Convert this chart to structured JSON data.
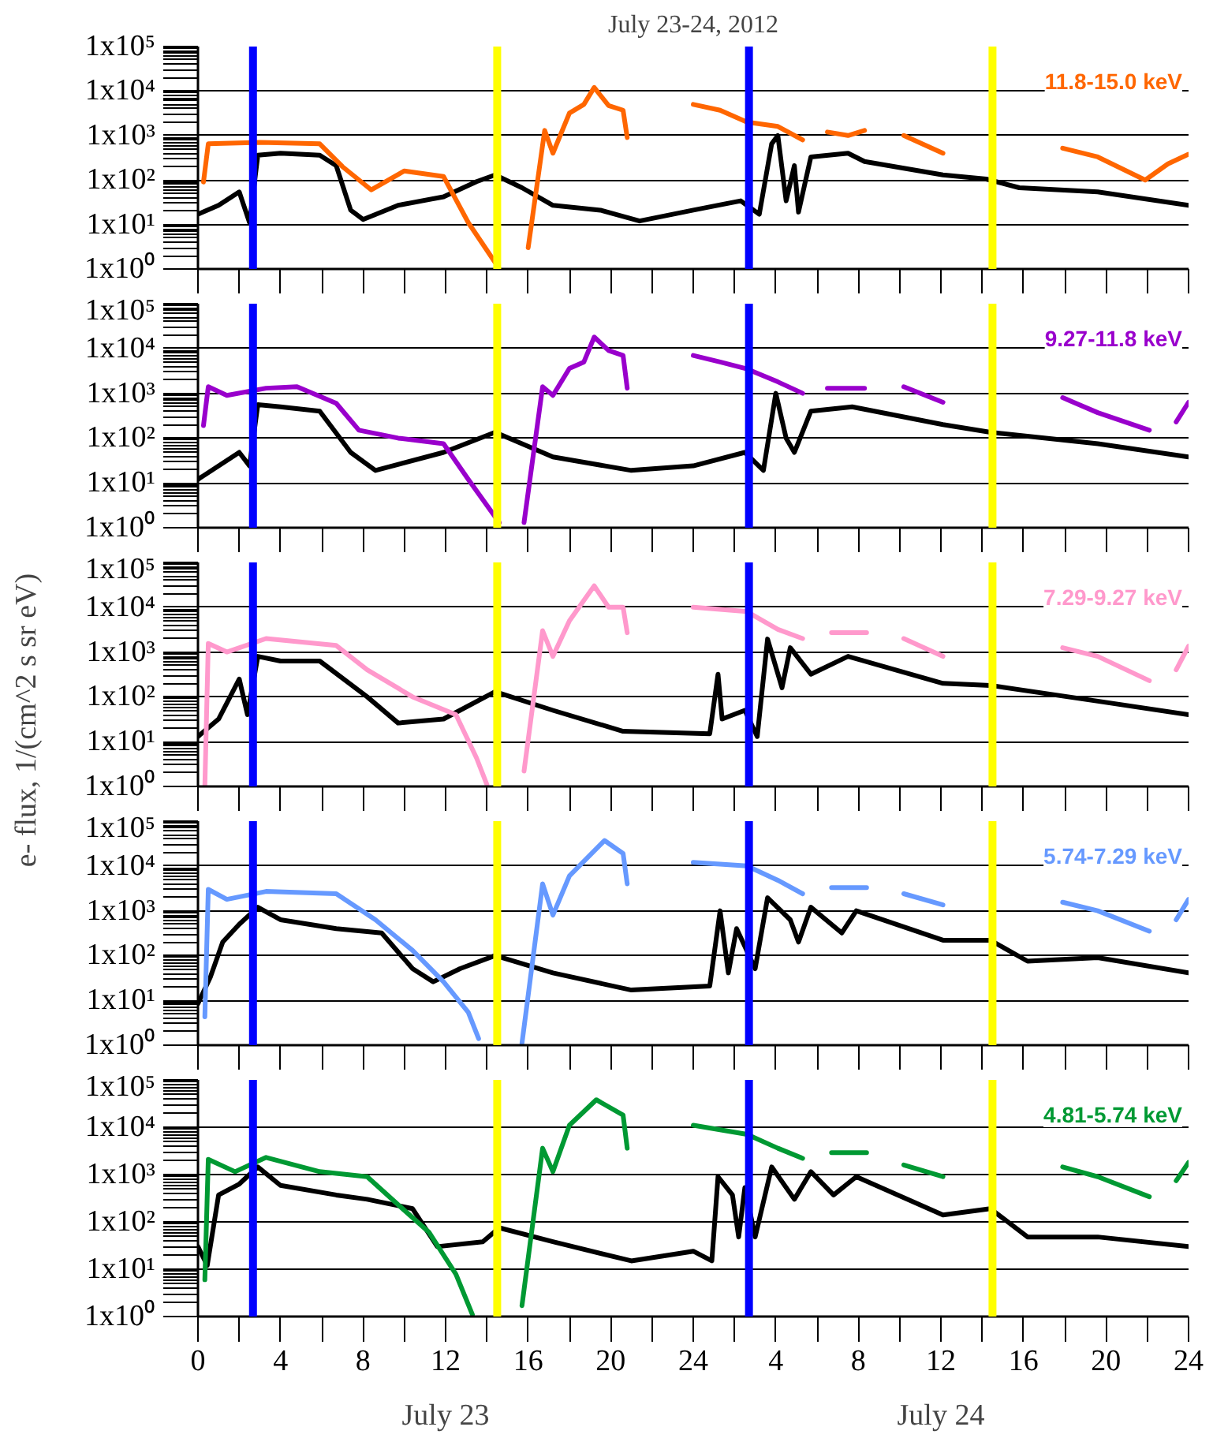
{
  "chart_data": [
    {
      "type": "line",
      "title": "July 23-24, 2012",
      "log": "y",
      "grid": "y",
      "tick_labels": "y",
      "xlim": [
        "2012-07-23T00:00",
        "2012-07-25T00:00"
      ],
      "ylim": [
        1,
        100000
      ],
      "xticks": [
        {
          "value": "2012-07-23T00:00",
          "label": null
        },
        {
          "value": "2012-07-23T02:00",
          "label": null
        },
        {
          "value": "2012-07-23T04:00",
          "label": null
        },
        {
          "value": "2012-07-23T06:00",
          "label": null
        },
        {
          "value": "2012-07-23T08:00",
          "label": null
        },
        {
          "value": "2012-07-23T10:00",
          "label": null
        },
        {
          "value": "2012-07-23T12:00",
          "label": null
        },
        {
          "value": "2012-07-23T14:00",
          "label": null
        },
        {
          "value": "2012-07-23T16:00",
          "label": null
        },
        {
          "value": "2012-07-23T18:00",
          "label": null
        },
        {
          "value": "2012-07-23T20:00",
          "label": null
        },
        {
          "value": "2012-07-23T22:00",
          "label": null
        },
        {
          "value": "2012-07-24T00:00",
          "label": null
        },
        {
          "value": "2012-07-24T02:00",
          "label": null
        },
        {
          "value": "2012-07-24T04:00",
          "label": null
        },
        {
          "value": "2012-07-24T06:00",
          "label": null
        },
        {
          "value": "2012-07-24T08:00",
          "label": null
        },
        {
          "value": "2012-07-24T10:00",
          "label": null
        },
        {
          "value": "2012-07-24T12:00",
          "label": null
        },
        {
          "value": "2012-07-24T14:00",
          "label": null
        },
        {
          "value": "2012-07-24T16:00",
          "label": null
        },
        {
          "value": "2012-07-24T18:00",
          "label": null
        },
        {
          "value": "2012-07-24T20:00",
          "label": null
        },
        {
          "value": "2012-07-24T22:00",
          "label": null
        },
        {
          "value": "2012-07-25T00:00",
          "label": null
        }
      ],
      "yticks": [
        {
          "value": 1,
          "label": "1x10⁰"
        },
        {
          "value": 10,
          "label": "1x10¹"
        },
        {
          "value": 100,
          "label": "1x10²"
        },
        {
          "value": 1000,
          "label": "1x10³"
        },
        {
          "value": 10000,
          "label": "1x10⁴"
        },
        {
          "value": 100000,
          "label": "1x10⁵"
        }
      ],
      "ref_lines": [
        {
          "axis": "x",
          "value": "2012-07-23T02:40",
          "color": "#0000ff"
        },
        {
          "axis": "x",
          "value": "2012-07-23T14:30",
          "color": "#ffff00"
        },
        {
          "axis": "x",
          "value": "2012-07-24T02:42",
          "color": "#0000ff"
        },
        {
          "axis": "x",
          "value": "2012-07-24T14:30",
          "color": "#ffff00"
        }
      ],
      "series": [
        {
          "color": "#000000",
          "x": [
            "2012-07-23T00:00",
            "2012-07-23T01:00",
            "2012-07-23T02:00",
            "2012-07-23T02:30",
            "2012-07-23T02:54",
            "2012-07-23T04:00",
            "2012-07-23T05:54",
            "2012-07-23T06:42",
            "2012-07-23T07:24",
            "2012-07-23T08:00",
            "2012-07-23T09:42",
            "2012-07-23T11:54",
            "2012-07-23T13:30",
            "2012-07-23T14:24",
            "2012-07-23T15:42",
            "2012-07-23T17:12",
            "2012-07-23T19:30",
            "2012-07-23T21:24",
            "2012-07-24T00:00",
            "2012-07-24T02:18",
            "2012-07-24T03:12",
            "2012-07-24T03:48",
            "2012-07-24T04:06",
            "2012-07-24T04:30",
            "2012-07-24T04:54",
            "2012-07-24T05:06",
            "2012-07-24T05:42",
            "2012-07-24T07:30",
            "2012-07-24T08:18",
            "2012-07-24T12:06",
            "2012-07-24T14:12",
            "2012-07-24T15:48",
            "2012-07-24T19:36",
            "2012-07-25T00:00"
          ],
          "values": [
            17,
            27,
            54,
            11,
            360,
            400,
            360,
            210,
            21,
            13,
            27,
            42,
            92,
            130,
            67,
            27,
            21,
            12,
            21,
            34,
            17,
            650,
            1000,
            34,
            210,
            19,
            330,
            400,
            260,
            130,
            105,
            67,
            54,
            27
          ]
        },
        {
          "name": "11.8-15.0 keV",
          "color": "#ff6600",
          "x": [
            "2012-07-23T00:16",
            "2012-07-23T00:30",
            "2012-07-23T03:00",
            "2012-07-23T05:54",
            "2012-07-23T07:00",
            "2012-07-23T08:24",
            "2012-07-23T10:00",
            "2012-07-23T11:54",
            "2012-07-23T13:06",
            "2012-07-23T14:24",
            "2012-07-23T15:12",
            "2012-07-23T16:00",
            "2012-07-23T16:48",
            "2012-07-23T17:12",
            "2012-07-23T18:00",
            "2012-07-23T18:42",
            "2012-07-23T19:12",
            "2012-07-23T19:54",
            "2012-07-23T20:36",
            "2012-07-23T20:48",
            "2012-07-23T22:24",
            "2012-07-24T00:00",
            "2012-07-24T01:18",
            "2012-07-24T02:36",
            "2012-07-24T04:06",
            "2012-07-24T05:18",
            "2012-07-24T05:48",
            "2012-07-24T06:30",
            "2012-07-24T07:30",
            "2012-07-24T08:18",
            "2012-07-24T09:18",
            "2012-07-24T10:12",
            "2012-07-24T12:06",
            "2012-07-24T15:00",
            "2012-07-24T17:54",
            "2012-07-24T19:36",
            "2012-07-24T21:54",
            "2012-07-24T23:00",
            "2012-07-25T00:00"
          ],
          "values": [
            90,
            650,
            700,
            650,
            200,
            60,
            160,
            120,
            11,
            1.4,
            null,
            3,
            1300,
            400,
            3200,
            5000,
            12000,
            4700,
            3700,
            900,
            null,
            5000,
            3700,
            2000,
            1600,
            800,
            null,
            1200,
            1000,
            1300,
            null,
            1000,
            400,
            null,
            520,
            330,
            100,
            230,
            380
          ]
        }
      ]
    },
    {
      "type": "line",
      "log": "y",
      "grid": "y",
      "tick_labels": "y",
      "xlim": [
        "2012-07-23T00:00",
        "2012-07-25T00:00"
      ],
      "ylim": [
        1,
        100000
      ],
      "xticks": [
        {
          "value": "2012-07-23T00:00",
          "label": null
        },
        {
          "value": "2012-07-23T02:00",
          "label": null
        },
        {
          "value": "2012-07-23T04:00",
          "label": null
        },
        {
          "value": "2012-07-23T06:00",
          "label": null
        },
        {
          "value": "2012-07-23T08:00",
          "label": null
        },
        {
          "value": "2012-07-23T10:00",
          "label": null
        },
        {
          "value": "2012-07-23T12:00",
          "label": null
        },
        {
          "value": "2012-07-23T14:00",
          "label": null
        },
        {
          "value": "2012-07-23T16:00",
          "label": null
        },
        {
          "value": "2012-07-23T18:00",
          "label": null
        },
        {
          "value": "2012-07-23T20:00",
          "label": null
        },
        {
          "value": "2012-07-23T22:00",
          "label": null
        },
        {
          "value": "2012-07-24T00:00",
          "label": null
        },
        {
          "value": "2012-07-24T02:00",
          "label": null
        },
        {
          "value": "2012-07-24T04:00",
          "label": null
        },
        {
          "value": "2012-07-24T06:00",
          "label": null
        },
        {
          "value": "2012-07-24T08:00",
          "label": null
        },
        {
          "value": "2012-07-24T10:00",
          "label": null
        },
        {
          "value": "2012-07-24T12:00",
          "label": null
        },
        {
          "value": "2012-07-24T14:00",
          "label": null
        },
        {
          "value": "2012-07-24T16:00",
          "label": null
        },
        {
          "value": "2012-07-24T18:00",
          "label": null
        },
        {
          "value": "2012-07-24T20:00",
          "label": null
        },
        {
          "value": "2012-07-24T22:00",
          "label": null
        },
        {
          "value": "2012-07-25T00:00",
          "label": null
        }
      ],
      "yticks": [
        {
          "value": 1,
          "label": "1x10⁰"
        },
        {
          "value": 10,
          "label": "1x10¹"
        },
        {
          "value": 100,
          "label": "1x10²"
        },
        {
          "value": 1000,
          "label": "1x10³"
        },
        {
          "value": 10000,
          "label": "1x10⁴"
        },
        {
          "value": 100000,
          "label": "1x10⁵"
        }
      ],
      "ref_lines": [
        {
          "axis": "x",
          "value": "2012-07-23T02:40",
          "color": "#0000ff"
        },
        {
          "axis": "x",
          "value": "2012-07-23T14:30",
          "color": "#ffff00"
        },
        {
          "axis": "x",
          "value": "2012-07-24T02:42",
          "color": "#0000ff"
        },
        {
          "axis": "x",
          "value": "2012-07-24T14:30",
          "color": "#ffff00"
        }
      ],
      "series": [
        {
          "color": "#000000",
          "x": [
            "2012-07-23T00:00",
            "2012-07-23T02:00",
            "2012-07-23T02:30",
            "2012-07-23T02:54",
            "2012-07-23T04:00",
            "2012-07-23T05:54",
            "2012-07-23T07:24",
            "2012-07-23T08:36",
            "2012-07-23T11:54",
            "2012-07-23T14:24",
            "2012-07-23T17:12",
            "2012-07-23T21:00",
            "2012-07-24T00:00",
            "2012-07-24T02:30",
            "2012-07-24T03:24",
            "2012-07-24T04:00",
            "2012-07-24T04:30",
            "2012-07-24T04:54",
            "2012-07-24T05:42",
            "2012-07-24T07:42",
            "2012-07-24T12:06",
            "2012-07-24T14:24",
            "2012-07-24T19:36",
            "2012-07-25T00:00"
          ],
          "values": [
            12,
            48,
            24,
            560,
            500,
            400,
            48,
            19,
            48,
            135,
            38,
            19,
            24,
            48,
            19,
            1000,
            100,
            48,
            400,
            500,
            200,
            135,
            75,
            38
          ]
        },
        {
          "name": "9.27-11.8 keV",
          "color": "#9900cc",
          "x": [
            "2012-07-23T00:16",
            "2012-07-23T00:30",
            "2012-07-23T01:24",
            "2012-07-23T03:18",
            "2012-07-23T04:48",
            "2012-07-23T06:42",
            "2012-07-23T07:48",
            "2012-07-23T09:42",
            "2012-07-23T11:54",
            "2012-07-23T13:06",
            "2012-07-23T14:36",
            "2012-07-23T15:12",
            "2012-07-23T15:48",
            "2012-07-23T16:42",
            "2012-07-23T17:12",
            "2012-07-23T18:00",
            "2012-07-23T18:42",
            "2012-07-23T19:12",
            "2012-07-23T19:54",
            "2012-07-23T20:36",
            "2012-07-23T20:48",
            "2012-07-23T22:24",
            "2012-07-24T00:00",
            "2012-07-24T01:18",
            "2012-07-24T02:36",
            "2012-07-24T04:06",
            "2012-07-24T05:18",
            "2012-07-24T05:48",
            "2012-07-24T06:30",
            "2012-07-24T08:18",
            "2012-07-24T09:18",
            "2012-07-24T10:12",
            "2012-07-24T12:06",
            "2012-07-24T15:00",
            "2012-07-24T17:54",
            "2012-07-24T19:36",
            "2012-07-24T22:06",
            "2012-07-24T22:48",
            "2012-07-24T23:24",
            "2012-07-25T00:00"
          ],
          "values": [
            190,
            1400,
            900,
            1300,
            1400,
            600,
            150,
            100,
            75,
            12,
            1.3,
            null,
            1.3,
            1400,
            900,
            3600,
            5000,
            18000,
            9000,
            7000,
            1300,
            null,
            7000,
            5000,
            3500,
            1800,
            1000,
            null,
            1300,
            1300,
            null,
            1400,
            630,
            null,
            800,
            370,
            150,
            null,
            230,
            630
          ]
        }
      ]
    },
    {
      "type": "line",
      "log": "y",
      "grid": "y",
      "tick_labels": "y",
      "xlim": [
        "2012-07-23T00:00",
        "2012-07-25T00:00"
      ],
      "ylim": [
        1,
        100000
      ],
      "ylabel": "e- flux, 1/(cm^2 s sr eV)",
      "xticks": [
        {
          "value": "2012-07-23T00:00",
          "label": null
        },
        {
          "value": "2012-07-23T02:00",
          "label": null
        },
        {
          "value": "2012-07-23T04:00",
          "label": null
        },
        {
          "value": "2012-07-23T06:00",
          "label": null
        },
        {
          "value": "2012-07-23T08:00",
          "label": null
        },
        {
          "value": "2012-07-23T10:00",
          "label": null
        },
        {
          "value": "2012-07-23T12:00",
          "label": null
        },
        {
          "value": "2012-07-23T14:00",
          "label": null
        },
        {
          "value": "2012-07-23T16:00",
          "label": null
        },
        {
          "value": "2012-07-23T18:00",
          "label": null
        },
        {
          "value": "2012-07-23T20:00",
          "label": null
        },
        {
          "value": "2012-07-23T22:00",
          "label": null
        },
        {
          "value": "2012-07-24T00:00",
          "label": null
        },
        {
          "value": "2012-07-24T02:00",
          "label": null
        },
        {
          "value": "2012-07-24T04:00",
          "label": null
        },
        {
          "value": "2012-07-24T06:00",
          "label": null
        },
        {
          "value": "2012-07-24T08:00",
          "label": null
        },
        {
          "value": "2012-07-24T10:00",
          "label": null
        },
        {
          "value": "2012-07-24T12:00",
          "label": null
        },
        {
          "value": "2012-07-24T14:00",
          "label": null
        },
        {
          "value": "2012-07-24T16:00",
          "label": null
        },
        {
          "value": "2012-07-24T18:00",
          "label": null
        },
        {
          "value": "2012-07-24T20:00",
          "label": null
        },
        {
          "value": "2012-07-24T22:00",
          "label": null
        },
        {
          "value": "2012-07-25T00:00",
          "label": null
        }
      ],
      "yticks": [
        {
          "value": 1,
          "label": "1x10⁰"
        },
        {
          "value": 10,
          "label": "1x10¹"
        },
        {
          "value": 100,
          "label": "1x10²"
        },
        {
          "value": 1000,
          "label": "1x10³"
        },
        {
          "value": 10000,
          "label": "1x10⁴"
        },
        {
          "value": 100000,
          "label": "1x10⁵"
        }
      ],
      "ref_lines": [
        {
          "axis": "x",
          "value": "2012-07-23T02:40",
          "color": "#0000ff"
        },
        {
          "axis": "x",
          "value": "2012-07-23T14:30",
          "color": "#ffff00"
        },
        {
          "axis": "x",
          "value": "2012-07-24T02:42",
          "color": "#0000ff"
        },
        {
          "axis": "x",
          "value": "2012-07-24T14:30",
          "color": "#ffff00"
        }
      ],
      "series": [
        {
          "color": "#000000",
          "x": [
            "2012-07-23T00:00",
            "2012-07-23T01:00",
            "2012-07-23T02:00",
            "2012-07-23T02:24",
            "2012-07-23T02:54",
            "2012-07-23T04:00",
            "2012-07-23T05:54",
            "2012-07-23T08:12",
            "2012-07-23T09:42",
            "2012-07-23T11:54",
            "2012-07-23T14:24",
            "2012-07-23T17:12",
            "2012-07-23T20:36",
            "2012-07-24T00:48",
            "2012-07-24T01:12",
            "2012-07-24T01:24",
            "2012-07-24T02:30",
            "2012-07-24T03:06",
            "2012-07-24T03:36",
            "2012-07-24T04:18",
            "2012-07-24T04:42",
            "2012-07-24T05:42",
            "2012-07-24T07:30",
            "2012-07-24T12:06",
            "2012-07-24T14:24",
            "2012-07-24T19:36",
            "2012-07-25T00:00"
          ],
          "values": [
            13,
            32,
            250,
            40,
            800,
            630,
            630,
            100,
            26,
            32,
            130,
            50,
            17,
            15,
            320,
            32,
            50,
            13,
            1950,
            160,
            1250,
            320,
            800,
            200,
            180,
            80,
            40
          ]
        },
        {
          "name": "7.29-9.27 keV",
          "color": "#ff99cc",
          "x": [
            "2012-07-23T00:20",
            "2012-07-23T00:30",
            "2012-07-23T01:24",
            "2012-07-23T03:18",
            "2012-07-23T06:42",
            "2012-07-23T08:12",
            "2012-07-23T10:24",
            "2012-07-23T12:30",
            "2012-07-23T13:30",
            "2012-07-23T14:00",
            "2012-07-23T14:54",
            "2012-07-23T15:48",
            "2012-07-23T16:42",
            "2012-07-23T17:12",
            "2012-07-23T18:00",
            "2012-07-23T19:12",
            "2012-07-23T19:54",
            "2012-07-23T20:36",
            "2012-07-23T20:48",
            "2012-07-23T22:24",
            "2012-07-24T00:00",
            "2012-07-24T02:36",
            "2012-07-24T04:06",
            "2012-07-24T05:18",
            "2012-07-24T05:48",
            "2012-07-24T06:42",
            "2012-07-24T08:24",
            "2012-07-24T09:18",
            "2012-07-24T10:12",
            "2012-07-24T12:06",
            "2012-07-24T15:00",
            "2012-07-24T17:54",
            "2012-07-24T19:36",
            "2012-07-24T22:06",
            "2012-07-24T22:48",
            "2012-07-24T23:24",
            "2012-07-25T00:00"
          ],
          "values": [
            1.0,
            1550,
            1000,
            2000,
            1400,
            400,
            100,
            40,
            4.3,
            1.1,
            null,
            2.2,
            3000,
            800,
            5000,
            30000,
            10000,
            10000,
            2700,
            null,
            10000,
            8000,
            3200,
            2000,
            null,
            2700,
            2700,
            null,
            2000,
            800,
            null,
            1250,
            800,
            230,
            null,
            400,
            1350
          ]
        }
      ]
    },
    {
      "type": "line",
      "log": "y",
      "grid": "y",
      "tick_labels": "y",
      "xlim": [
        "2012-07-23T00:00",
        "2012-07-25T00:00"
      ],
      "ylim": [
        1,
        100000
      ],
      "xticks": [
        {
          "value": "2012-07-23T00:00",
          "label": null
        },
        {
          "value": "2012-07-23T02:00",
          "label": null
        },
        {
          "value": "2012-07-23T04:00",
          "label": null
        },
        {
          "value": "2012-07-23T06:00",
          "label": null
        },
        {
          "value": "2012-07-23T08:00",
          "label": null
        },
        {
          "value": "2012-07-23T10:00",
          "label": null
        },
        {
          "value": "2012-07-23T12:00",
          "label": null
        },
        {
          "value": "2012-07-23T14:00",
          "label": null
        },
        {
          "value": "2012-07-23T16:00",
          "label": null
        },
        {
          "value": "2012-07-23T18:00",
          "label": null
        },
        {
          "value": "2012-07-23T20:00",
          "label": null
        },
        {
          "value": "2012-07-23T22:00",
          "label": null
        },
        {
          "value": "2012-07-24T00:00",
          "label": null
        },
        {
          "value": "2012-07-24T02:00",
          "label": null
        },
        {
          "value": "2012-07-24T04:00",
          "label": null
        },
        {
          "value": "2012-07-24T06:00",
          "label": null
        },
        {
          "value": "2012-07-24T08:00",
          "label": null
        },
        {
          "value": "2012-07-24T10:00",
          "label": null
        },
        {
          "value": "2012-07-24T12:00",
          "label": null
        },
        {
          "value": "2012-07-24T14:00",
          "label": null
        },
        {
          "value": "2012-07-24T16:00",
          "label": null
        },
        {
          "value": "2012-07-24T18:00",
          "label": null
        },
        {
          "value": "2012-07-24T20:00",
          "label": null
        },
        {
          "value": "2012-07-24T22:00",
          "label": null
        },
        {
          "value": "2012-07-25T00:00",
          "label": null
        }
      ],
      "yticks": [
        {
          "value": 1,
          "label": "1x10⁰"
        },
        {
          "value": 10,
          "label": "1x10¹"
        },
        {
          "value": 100,
          "label": "1x10²"
        },
        {
          "value": 1000,
          "label": "1x10³"
        },
        {
          "value": 10000,
          "label": "1x10⁴"
        },
        {
          "value": 100000,
          "label": "1x10⁵"
        }
      ],
      "ref_lines": [
        {
          "axis": "x",
          "value": "2012-07-23T02:40",
          "color": "#0000ff"
        },
        {
          "axis": "x",
          "value": "2012-07-23T14:30",
          "color": "#ffff00"
        },
        {
          "axis": "x",
          "value": "2012-07-24T02:42",
          "color": "#0000ff"
        },
        {
          "axis": "x",
          "value": "2012-07-24T14:30",
          "color": "#ffff00"
        }
      ],
      "series": [
        {
          "color": "#000000",
          "x": [
            "2012-07-23T00:00",
            "2012-07-23T00:36",
            "2012-07-23T01:12",
            "2012-07-23T02:00",
            "2012-07-23T02:54",
            "2012-07-23T04:00",
            "2012-07-23T06:42",
            "2012-07-23T08:54",
            "2012-07-23T10:24",
            "2012-07-23T11:24",
            "2012-07-23T12:42",
            "2012-07-23T14:24",
            "2012-07-23T17:12",
            "2012-07-23T21:00",
            "2012-07-24T00:48",
            "2012-07-24T01:18",
            "2012-07-24T01:42",
            "2012-07-24T02:06",
            "2012-07-24T03:00",
            "2012-07-24T03:36",
            "2012-07-24T04:42",
            "2012-07-24T05:06",
            "2012-07-24T05:42",
            "2012-07-24T07:12",
            "2012-07-24T07:54",
            "2012-07-24T12:06",
            "2012-07-24T14:24",
            "2012-07-24T16:12",
            "2012-07-24T19:36",
            "2012-07-25T00:00"
          ],
          "values": [
            8.5,
            33,
            200,
            500,
            1200,
            630,
            400,
            320,
            51,
            26,
            51,
            100,
            41,
            17,
            21,
            1000,
            41,
            400,
            51,
            1950,
            630,
            200,
            1200,
            320,
            1000,
            220,
            220,
            75,
            90,
            41
          ]
        },
        {
          "name": "5.74-7.29 keV",
          "color": "#6699ff",
          "x": [
            "2012-07-23T00:20",
            "2012-07-23T00:30",
            "2012-07-23T01:24",
            "2012-07-23T03:18",
            "2012-07-23T06:42",
            "2012-07-23T08:36",
            "2012-07-23T10:24",
            "2012-07-23T11:54",
            "2012-07-23T13:06",
            "2012-07-23T13:36",
            "2012-07-23T14:36",
            "2012-07-23T15:42",
            "2012-07-23T16:42",
            "2012-07-23T17:12",
            "2012-07-23T18:00",
            "2012-07-23T19:42",
            "2012-07-23T20:36",
            "2012-07-23T20:48",
            "2012-07-23T22:24",
            "2012-07-24T00:00",
            "2012-07-24T02:36",
            "2012-07-24T04:06",
            "2012-07-24T05:18",
            "2012-07-24T05:48",
            "2012-07-24T06:42",
            "2012-07-24T08:24",
            "2012-07-24T09:18",
            "2012-07-24T10:12",
            "2012-07-24T12:06",
            "2012-07-24T15:00",
            "2012-07-24T17:54",
            "2012-07-24T19:36",
            "2012-07-24T22:06",
            "2012-07-24T22:48",
            "2012-07-24T23:24",
            "2012-07-25T00:00"
          ],
          "values": [
            4.3,
            3000,
            1800,
            2700,
            2400,
            630,
            130,
            26,
            5.4,
            1.4,
            null,
            1.1,
            4000,
            800,
            6000,
            37000,
            19000,
            4000,
            null,
            12000,
            10000,
            4800,
            2400,
            null,
            3300,
            3300,
            null,
            2400,
            1350,
            null,
            1550,
            1000,
            350,
            null,
            630,
            1800
          ]
        }
      ]
    },
    {
      "type": "line",
      "log": "y",
      "grid": "y",
      "xlim": [
        "2012-07-23T00:00",
        "2012-07-25T00:00"
      ],
      "ylim": [
        1,
        100000
      ],
      "annotations": [
        "July 23",
        "July 24"
      ],
      "xticks": [
        {
          "value": "2012-07-23T00:00",
          "label": "0"
        },
        {
          "value": "2012-07-23T02:00",
          "label": null
        },
        {
          "value": "2012-07-23T04:00",
          "label": "4"
        },
        {
          "value": "2012-07-23T06:00",
          "label": null
        },
        {
          "value": "2012-07-23T08:00",
          "label": "8"
        },
        {
          "value": "2012-07-23T10:00",
          "label": null
        },
        {
          "value": "2012-07-23T12:00",
          "label": "12"
        },
        {
          "value": "2012-07-23T14:00",
          "label": null
        },
        {
          "value": "2012-07-23T16:00",
          "label": "16"
        },
        {
          "value": "2012-07-23T18:00",
          "label": null
        },
        {
          "value": "2012-07-23T20:00",
          "label": "20"
        },
        {
          "value": "2012-07-23T22:00",
          "label": null
        },
        {
          "value": "2012-07-24T00:00",
          "label": "24"
        },
        {
          "value": "2012-07-24T02:00",
          "label": null
        },
        {
          "value": "2012-07-24T04:00",
          "label": "4"
        },
        {
          "value": "2012-07-24T06:00",
          "label": null
        },
        {
          "value": "2012-07-24T08:00",
          "label": "8"
        },
        {
          "value": "2012-07-24T10:00",
          "label": null
        },
        {
          "value": "2012-07-24T12:00",
          "label": "12"
        },
        {
          "value": "2012-07-24T14:00",
          "label": null
        },
        {
          "value": "2012-07-24T16:00",
          "label": "16"
        },
        {
          "value": "2012-07-24T18:00",
          "label": null
        },
        {
          "value": "2012-07-24T20:00",
          "label": "20"
        },
        {
          "value": "2012-07-24T22:00",
          "label": null
        },
        {
          "value": "2012-07-25T00:00",
          "label": "24"
        }
      ],
      "yticks": [
        {
          "value": 1,
          "label": "1x10⁰"
        },
        {
          "value": 10,
          "label": "1x10¹"
        },
        {
          "value": 100,
          "label": "1x10²"
        },
        {
          "value": 1000,
          "label": "1x10³"
        },
        {
          "value": 10000,
          "label": "1x10⁴"
        },
        {
          "value": 100000,
          "label": "1x10⁵"
        }
      ],
      "ref_lines": [
        {
          "axis": "x",
          "value": "2012-07-23T02:40",
          "color": "#0000ff"
        },
        {
          "axis": "x",
          "value": "2012-07-23T14:30",
          "color": "#ffff00"
        },
        {
          "axis": "x",
          "value": "2012-07-24T02:42",
          "color": "#0000ff"
        },
        {
          "axis": "x",
          "value": "2012-07-24T14:30",
          "color": "#ffff00"
        }
      ],
      "series": [
        {
          "color": "#000000",
          "x": [
            "2012-07-23T00:00",
            "2012-07-23T00:27",
            "2012-07-23T01:00",
            "2012-07-23T02:00",
            "2012-07-23T02:54",
            "2012-07-23T04:00",
            "2012-07-23T06:42",
            "2012-07-23T08:12",
            "2012-07-23T10:24",
            "2012-07-23T11:36",
            "2012-07-23T13:48",
            "2012-07-23T14:36",
            "2012-07-23T17:12",
            "2012-07-23T21:00",
            "2012-07-24T00:00",
            "2012-07-24T00:54",
            "2012-07-24T01:12",
            "2012-07-24T01:54",
            "2012-07-24T02:12",
            "2012-07-24T02:30",
            "2012-07-24T03:00",
            "2012-07-24T03:48",
            "2012-07-24T04:54",
            "2012-07-24T05:42",
            "2012-07-24T06:48",
            "2012-07-24T07:54",
            "2012-07-24T12:06",
            "2012-07-24T14:24",
            "2012-07-24T16:12",
            "2012-07-24T19:36",
            "2012-07-25T00:00"
          ],
          "values": [
            30,
            12,
            370,
            630,
            1450,
            590,
            370,
            300,
            190,
            30,
            38,
            75,
            38,
            15,
            24,
            15,
            900,
            370,
            48,
            530,
            48,
            1450,
            300,
            1150,
            370,
            900,
            140,
            190,
            48,
            48,
            30
          ]
        },
        {
          "name": "4.81-5.74 keV",
          "color": "#009933",
          "x": [
            "2012-07-23T00:20",
            "2012-07-23T00:30",
            "2012-07-23T01:48",
            "2012-07-23T03:18",
            "2012-07-23T05:54",
            "2012-07-23T08:12",
            "2012-07-23T09:42",
            "2012-07-23T11:12",
            "2012-07-23T12:30",
            "2012-07-23T13:18",
            "2012-07-23T14:30",
            "2012-07-23T15:42",
            "2012-07-23T16:42",
            "2012-07-23T17:12",
            "2012-07-23T18:00",
            "2012-07-23T19:18",
            "2012-07-23T20:36",
            "2012-07-23T20:48",
            "2012-07-23T22:24",
            "2012-07-24T00:00",
            "2012-07-24T02:36",
            "2012-07-24T04:06",
            "2012-07-24T05:18",
            "2012-07-24T05:48",
            "2012-07-24T06:42",
            "2012-07-24T08:24",
            "2012-07-24T09:18",
            "2012-07-24T10:12",
            "2012-07-24T12:06",
            "2012-07-24T15:00",
            "2012-07-24T17:54",
            "2012-07-24T19:36",
            "2012-07-24T22:06",
            "2012-07-24T22:48",
            "2012-07-24T23:24",
            "2012-07-25T00:00"
          ],
          "values": [
            6,
            2100,
            1150,
            2300,
            1150,
            900,
            230,
            60,
            7.8,
            1.1,
            null,
            1.7,
            3600,
            1150,
            11000,
            38000,
            18000,
            3600,
            null,
            11000,
            7100,
            3600,
            2200,
            null,
            2900,
            2900,
            null,
            1600,
            900,
            null,
            1450,
            900,
            340,
            null,
            740,
            1800
          ]
        }
      ]
    }
  ]
}
